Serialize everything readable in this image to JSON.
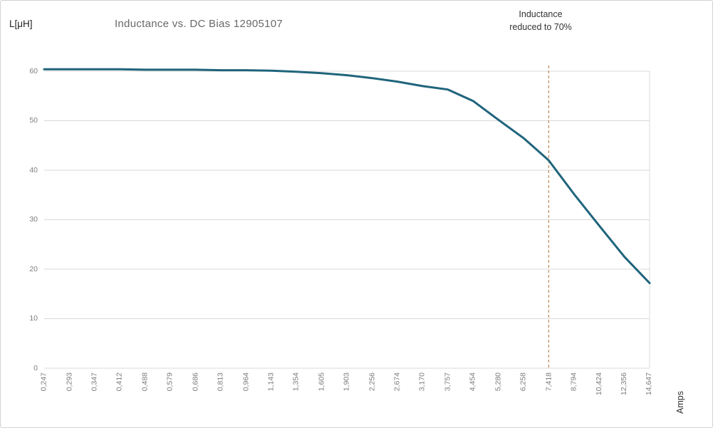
{
  "chart": {
    "y_axis_unit": "L[μH]",
    "title": "Inductance vs. DC Bias 12905107",
    "x_axis_unit": "Amps",
    "annotation": {
      "line1": "Inductance",
      "line2": "reduced to 70%"
    }
  },
  "chart_data": {
    "type": "line",
    "title": "Inductance vs. DC Bias 12905107",
    "xlabel": "Amps",
    "ylabel": "L[μH]",
    "categories": [
      "0,247",
      "0,293",
      "0,347",
      "0,412",
      "0,488",
      "0,579",
      "0,686",
      "0,813",
      "0,964",
      "1,143",
      "1,354",
      "1,605",
      "1,903",
      "2,256",
      "2,674",
      "3,170",
      "3,757",
      "4,454",
      "5,280",
      "6,258",
      "7,418",
      "8,794",
      "10,424",
      "12,356",
      "14,647"
    ],
    "values": [
      60.4,
      60.4,
      60.4,
      60.4,
      60.3,
      60.3,
      60.3,
      60.2,
      60.2,
      60.1,
      59.9,
      59.6,
      59.2,
      58.6,
      57.9,
      57.0,
      56.3,
      54.0,
      50.2,
      46.5,
      42.0,
      35.2,
      28.8,
      22.5,
      17.2
    ],
    "ylim": [
      0,
      60
    ],
    "yticks": [
      0,
      10,
      20,
      30,
      40,
      50,
      60
    ],
    "grid": true,
    "legend": "none",
    "annotation": {
      "text": "Inductance reduced to 70%",
      "marker_category": "7,418",
      "marker_category_index": 20,
      "marker_style": "dashed-vertical-line"
    },
    "colors": {
      "line": "#1f647c",
      "dashed_marker": "#bb8a58",
      "grid": "#d9d9d9",
      "tick_label": "#7d7d7d",
      "title": "#696969",
      "text": "#333333"
    }
  }
}
